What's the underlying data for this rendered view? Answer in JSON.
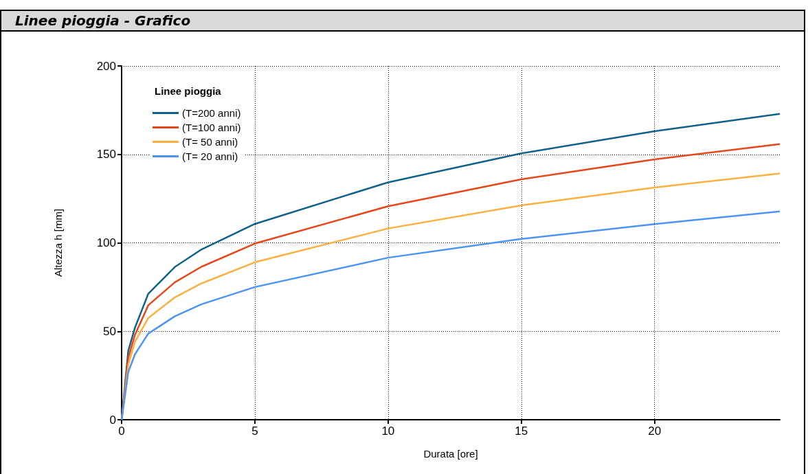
{
  "chart_data": {
    "type": "line",
    "title": "Linee pioggia - Grafico",
    "xlabel": "Durata [ore]",
    "ylabel": "Altezza h [mm]",
    "legend_title": "Linee pioggia",
    "x": [
      0,
      0.25,
      0.5,
      1,
      2,
      3,
      5,
      10,
      15,
      20,
      24.7
    ],
    "series": [
      {
        "name": "(T=200 anni)",
        "color": "#0e6189",
        "values": [
          0,
          39,
          52,
          71.2,
          86.4,
          96.3,
          110.7,
          134.2,
          150.6,
          163.1,
          172.9
        ]
      },
      {
        "name": "(T=100 anni)",
        "color": "#e8461a",
        "values": [
          0,
          35,
          48,
          64.7,
          77.7,
          86.5,
          99.6,
          120.7,
          135.9,
          147.2,
          155.8
        ]
      },
      {
        "name": "(T= 50 anni)",
        "color": "#fbb040",
        "values": [
          0,
          31,
          44,
          57.5,
          69.2,
          77.1,
          89,
          108.1,
          121.2,
          131.3,
          139.2
        ]
      },
      {
        "name": "(T= 20 anni)",
        "color": "#4c93f5",
        "values": [
          0,
          27,
          37,
          48.7,
          58.5,
          65.3,
          75,
          91.6,
          102.2,
          110.6,
          117.8
        ]
      }
    ],
    "xlim": [
      0,
      24.7
    ],
    "xticks": [
      0,
      5,
      10,
      15,
      20
    ],
    "ylim": [
      0,
      200
    ],
    "yticks": [
      0,
      50,
      100,
      150,
      200
    ],
    "grid": true,
    "legend": "top left",
    "marker": "none",
    "line_style": "solid"
  }
}
